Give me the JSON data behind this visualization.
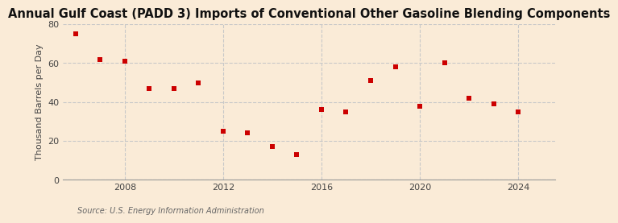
{
  "title": "Annual Gulf Coast (PADD 3) Imports of Conventional Other Gasoline Blending Components",
  "ylabel": "Thousand Barrels per Day",
  "source": "Source: U.S. Energy Information Administration",
  "background_color": "#faebd7",
  "plot_background_color": "#faebd7",
  "marker_color": "#cc0000",
  "marker": "s",
  "marker_size": 4,
  "years": [
    2006,
    2007,
    2008,
    2009,
    2010,
    2011,
    2012,
    2013,
    2014,
    2015,
    2016,
    2017,
    2018,
    2019,
    2020,
    2021,
    2022,
    2023,
    2024
  ],
  "values": [
    75,
    62,
    61,
    47,
    47,
    50,
    25,
    24,
    17,
    13,
    36,
    35,
    51,
    58,
    38,
    60,
    42,
    39,
    35
  ],
  "xlim": [
    2005.5,
    2025.5
  ],
  "ylim": [
    0,
    80
  ],
  "yticks": [
    0,
    20,
    40,
    60,
    80
  ],
  "xticks": [
    2008,
    2012,
    2016,
    2020,
    2024
  ],
  "grid_color": "#c8c8c8",
  "title_fontsize": 10.5,
  "label_fontsize": 8,
  "tick_fontsize": 8,
  "source_fontsize": 7
}
